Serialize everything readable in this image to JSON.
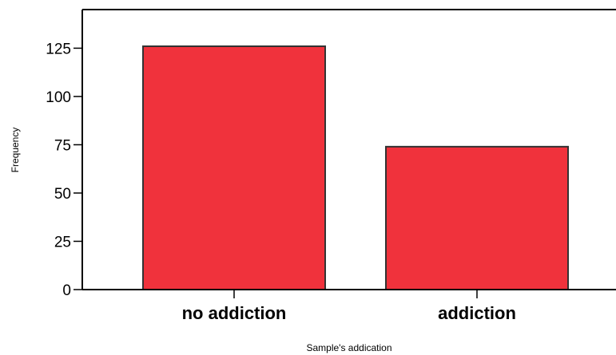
{
  "chart_data": {
    "type": "bar",
    "title": "",
    "xlabel": "Sample's addication",
    "ylabel": "Frequency",
    "categories": [
      "no addiction",
      "addiction"
    ],
    "values": [
      126,
      74
    ],
    "ylim": [
      0,
      145
    ],
    "yticks": [
      0,
      25,
      50,
      75,
      100,
      125
    ],
    "grid": false,
    "legend": "none",
    "bar_color": "#f0323c",
    "bar_edge_color": "#333333"
  }
}
